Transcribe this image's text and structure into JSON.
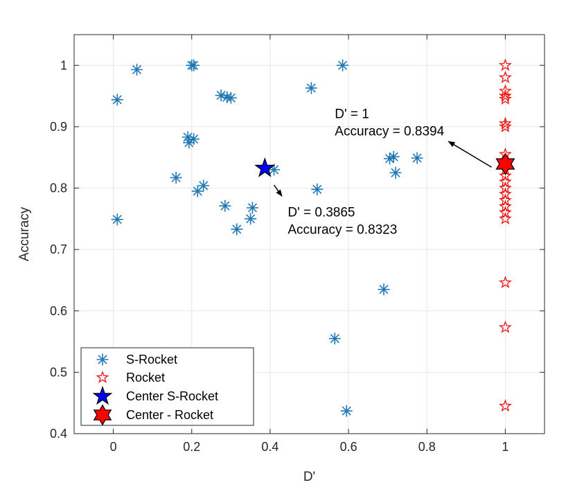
{
  "chart_data": {
    "type": "scatter",
    "xlabel": "D'",
    "ylabel": "Accuracy",
    "xlim": [
      -0.1,
      1.1
    ],
    "ylim": [
      0.4,
      1.05
    ],
    "xticks": [
      0,
      0.2,
      0.4,
      0.6,
      0.8,
      1
    ],
    "xtick_labels": [
      "0",
      "0.2",
      "0.4",
      "0.6",
      "0.8",
      "1"
    ],
    "yticks": [
      0.4,
      0.5,
      0.6,
      0.7,
      0.8,
      0.9,
      1
    ],
    "ytick_labels": [
      "0.4",
      "0.5",
      "0.6",
      "0.7",
      "0.8",
      "0.9",
      "1"
    ],
    "grid": true,
    "legend_position": "bottom-left",
    "series": [
      {
        "name": "S-Rocket",
        "marker": "asterisk",
        "color": "#1f77b4",
        "points": [
          [
            0.06,
            0.993
          ],
          [
            0.2,
            1.0
          ],
          [
            0.205,
            1.0
          ],
          [
            0.01,
            0.944
          ],
          [
            0.275,
            0.951
          ],
          [
            0.29,
            0.948
          ],
          [
            0.3,
            0.947
          ],
          [
            0.19,
            0.883
          ],
          [
            0.205,
            0.88
          ],
          [
            0.193,
            0.874
          ],
          [
            0.16,
            0.817
          ],
          [
            0.23,
            0.804
          ],
          [
            0.215,
            0.795
          ],
          [
            0.41,
            0.83
          ],
          [
            0.52,
            0.798
          ],
          [
            0.01,
            0.749
          ],
          [
            0.285,
            0.771
          ],
          [
            0.355,
            0.768
          ],
          [
            0.35,
            0.75
          ],
          [
            0.315,
            0.733
          ],
          [
            0.505,
            0.963
          ],
          [
            0.585,
            1.0
          ],
          [
            0.705,
            0.848
          ],
          [
            0.715,
            0.851
          ],
          [
            0.775,
            0.849
          ],
          [
            0.72,
            0.825
          ],
          [
            0.69,
            0.635
          ],
          [
            0.565,
            0.555
          ],
          [
            0.595,
            0.437
          ]
        ]
      },
      {
        "name": "Rocket",
        "marker": "pentagram-open",
        "color": "#ee1111",
        "points": [
          [
            1,
            1.0
          ],
          [
            1,
            0.98
          ],
          [
            1,
            0.958
          ],
          [
            1,
            0.95
          ],
          [
            1,
            0.945
          ],
          [
            1,
            0.905
          ],
          [
            1,
            0.9
          ],
          [
            1,
            0.855
          ],
          [
            1,
            0.845
          ],
          [
            1,
            0.83
          ],
          [
            1,
            0.82
          ],
          [
            1,
            0.81
          ],
          [
            1,
            0.8
          ],
          [
            1,
            0.79
          ],
          [
            1,
            0.78
          ],
          [
            1,
            0.77
          ],
          [
            1,
            0.76
          ],
          [
            1,
            0.75
          ],
          [
            1,
            0.646
          ],
          [
            1,
            0.573
          ],
          [
            1,
            0.445
          ]
        ]
      },
      {
        "name": "Center S-Rocket",
        "marker": "pentagram-filled",
        "color": "#0000ff",
        "points": [
          [
            0.3865,
            0.8323
          ]
        ]
      },
      {
        "name": "Center - Rocket",
        "marker": "hexagram-filled",
        "color": "#ff0000",
        "points": [
          [
            1,
            0.8394
          ]
        ]
      }
    ],
    "annotations": [
      {
        "lines": [
          "D' = 1",
          "Accuracy = 0.8394"
        ],
        "arrow_from": [
          0.965,
          0.834
        ],
        "arrow_to": [
          0.855,
          0.876
        ],
        "text_at": [
          0.565,
          0.914
        ]
      },
      {
        "lines": [
          "D' = 0.3865",
          "Accuracy = 0.8323"
        ],
        "arrow_from": [
          0.41,
          0.805
        ],
        "arrow_to": [
          0.43,
          0.787
        ],
        "text_at": [
          0.445,
          0.754
        ]
      }
    ]
  }
}
